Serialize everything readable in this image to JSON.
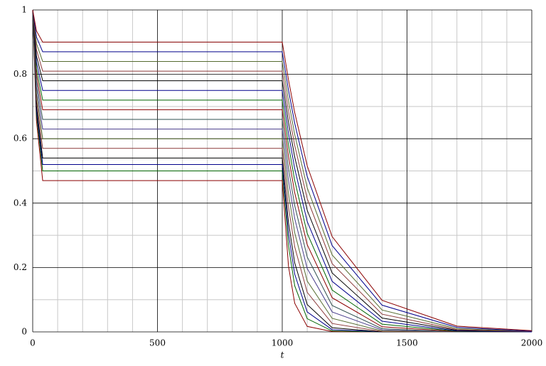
{
  "chart_data": {
    "type": "line",
    "xlabel": "t",
    "x": [
      0,
      15,
      40,
      1000,
      1025,
      1050,
      1100,
      1200,
      1400,
      1700,
      2000
    ],
    "xlim": [
      0,
      2000
    ],
    "xticks": [
      0,
      500,
      1000,
      1500,
      2000
    ],
    "ylim": [
      0,
      1
    ],
    "yticks": [
      0,
      0.2,
      0.4,
      0.6,
      0.8,
      1
    ],
    "xticks_minor": [
      100,
      200,
      300,
      400,
      600,
      700,
      800,
      900,
      1100,
      1200,
      1300,
      1400,
      1600,
      1700,
      1800,
      1900
    ],
    "yticks_minor": [
      0.1,
      0.3,
      0.5,
      0.7,
      0.9
    ],
    "grid": true,
    "series": [
      {
        "color": "#8b0000",
        "values": [
          1,
          0.656,
          0.47,
          0.47,
          0.204,
          0.089,
          0.017,
          0.001,
          0,
          0,
          0
        ]
      },
      {
        "color": "#006400",
        "values": [
          1,
          0.675,
          0.5,
          0.5,
          0.268,
          0.143,
          0.041,
          0.003,
          0,
          0,
          0
        ]
      },
      {
        "color": "#00008b",
        "values": [
          1,
          0.688,
          0.52,
          0.52,
          0.305,
          0.179,
          0.062,
          0.007,
          0,
          0,
          0
        ]
      },
      {
        "color": "#000000",
        "values": [
          1,
          0.701,
          0.54,
          0.54,
          0.34,
          0.214,
          0.085,
          0.013,
          0,
          0,
          0
        ]
      },
      {
        "color": "#8b3a3a",
        "values": [
          1,
          0.721,
          0.57,
          0.57,
          0.388,
          0.264,
          0.123,
          0.026,
          0.001,
          0,
          0
        ]
      },
      {
        "color": "#556b2f",
        "values": [
          1,
          0.74,
          0.6,
          0.6,
          0.43,
          0.308,
          0.158,
          0.042,
          0.003,
          0,
          0
        ]
      },
      {
        "color": "#483d8b",
        "values": [
          1,
          0.76,
          0.63,
          0.63,
          0.471,
          0.352,
          0.197,
          0.062,
          0.006,
          0,
          0
        ]
      },
      {
        "color": "#2f4f4f",
        "values": [
          1,
          0.779,
          0.66,
          0.66,
          0.509,
          0.392,
          0.233,
          0.082,
          0.01,
          0,
          0
        ]
      },
      {
        "color": "#8b0000",
        "values": [
          1,
          0.799,
          0.69,
          0.69,
          0.546,
          0.432,
          0.271,
          0.106,
          0.016,
          0.001,
          0
        ]
      },
      {
        "color": "#006400",
        "values": [
          1,
          0.818,
          0.72,
          0.72,
          0.581,
          0.47,
          0.306,
          0.13,
          0.024,
          0.002,
          0
        ]
      },
      {
        "color": "#00008b",
        "values": [
          1,
          0.838,
          0.75,
          0.75,
          0.617,
          0.507,
          0.343,
          0.157,
          0.033,
          0.003,
          0
        ]
      },
      {
        "color": "#000000",
        "values": [
          1,
          0.857,
          0.78,
          0.78,
          0.651,
          0.543,
          0.378,
          0.183,
          0.043,
          0.005,
          0.001
        ]
      },
      {
        "color": "#8b3a3a",
        "values": [
          1,
          0.877,
          0.81,
          0.81,
          0.685,
          0.579,
          0.414,
          0.212,
          0.055,
          0.007,
          0.001
        ]
      },
      {
        "color": "#556b2f",
        "values": [
          1,
          0.896,
          0.84,
          0.84,
          0.718,
          0.613,
          0.448,
          0.239,
          0.068,
          0.01,
          0.002
        ]
      },
      {
        "color": "#00008b",
        "values": [
          1,
          0.916,
          0.87,
          0.87,
          0.751,
          0.648,
          0.483,
          0.268,
          0.083,
          0.014,
          0.002
        ]
      },
      {
        "color": "#8b0000",
        "values": [
          1,
          0.935,
          0.9,
          0.9,
          0.783,
          0.681,
          0.516,
          0.296,
          0.098,
          0.018,
          0.004
        ]
      }
    ]
  }
}
